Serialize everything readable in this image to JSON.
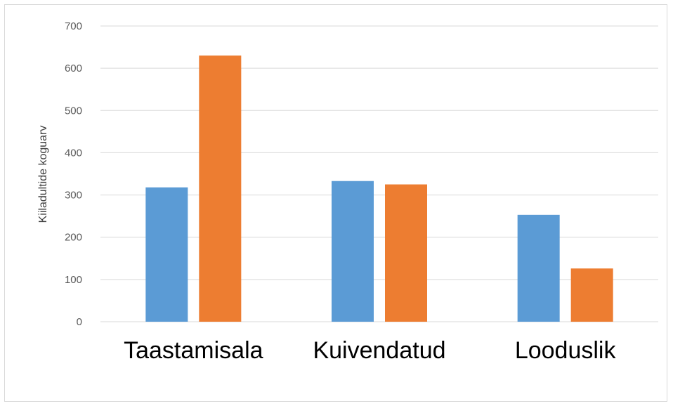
{
  "chart_data": {
    "type": "bar",
    "title": "",
    "xlabel": "",
    "ylabel": "Kiiladultide koguarv",
    "categories": [
      "Taastamisala",
      "Kuivendatud",
      "Looduslik"
    ],
    "series": [
      {
        "values": [
          318,
          333,
          253
        ],
        "color": "#5B9BD5"
      },
      {
        "values": [
          630,
          325,
          126
        ],
        "color": "#ED7D31"
      }
    ],
    "ylim": [
      0,
      700
    ],
    "yticks": [
      0,
      100,
      200,
      300,
      400,
      500,
      600,
      700
    ],
    "grid": true,
    "legend": "none"
  }
}
